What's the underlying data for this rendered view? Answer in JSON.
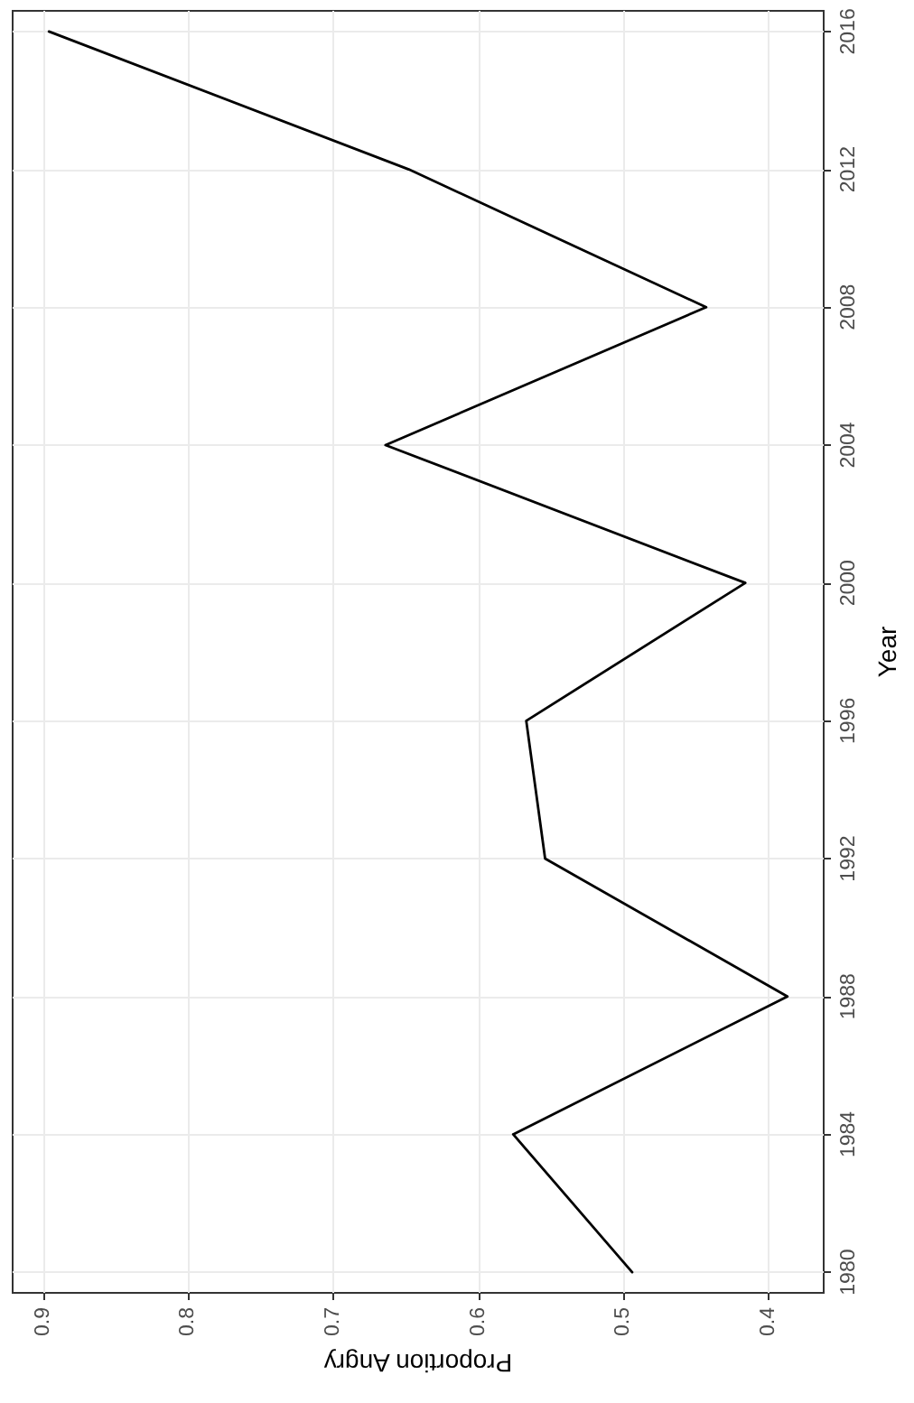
{
  "chart_data": {
    "type": "line",
    "xlabel": "Proportion Angry",
    "ylabel": "Year",
    "x": [
      0.494,
      0.576,
      0.387,
      0.554,
      0.567,
      0.416,
      0.664,
      0.443,
      0.648,
      0.896
    ],
    "series": [
      {
        "color": "#000000",
        "values": [
          1980,
          1984,
          1988,
          1992,
          1996,
          2000,
          2004,
          2008,
          2012,
          2016
        ]
      }
    ],
    "xlim": [
      0.921,
      0.362
    ],
    "xticks": [
      0.9,
      0.8,
      0.7,
      0.6,
      0.5,
      0.4
    ],
    "ylim": [
      1979.4,
      2016.6
    ],
    "yticks": [
      1980,
      1984,
      1988,
      1992,
      1996,
      2000,
      2004,
      2008,
      2012,
      2016
    ],
    "grid": true,
    "marker": "none",
    "line_style": "solid"
  }
}
